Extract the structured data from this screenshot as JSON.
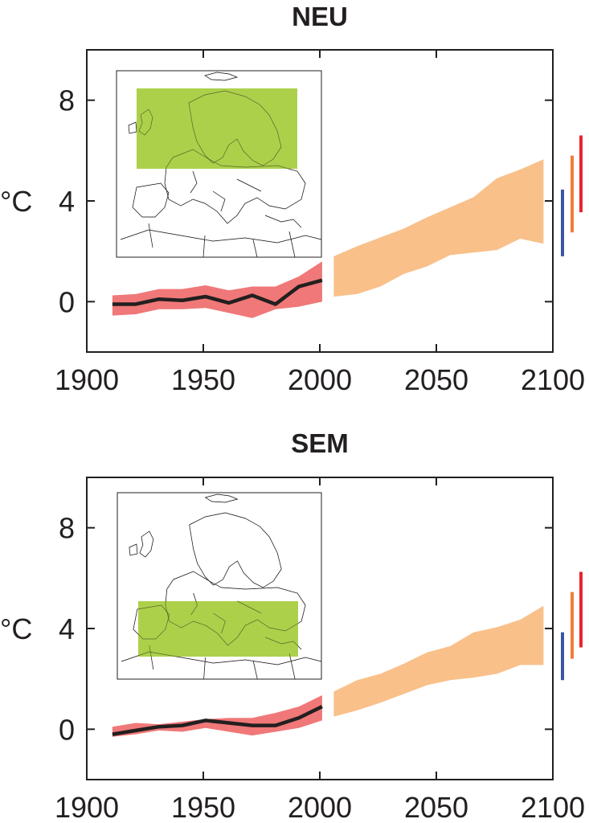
{
  "colors": {
    "observed_band": "#f07878",
    "observed_line": "#231f20",
    "projection_band": "#f9c08a",
    "region_box": "#a6cc3c",
    "bar_low": "#3b55a6",
    "bar_mid": "#f07d3a",
    "bar_high": "#e8262d"
  },
  "chart_data": [
    {
      "type": "line",
      "title": "NEU",
      "ylabel": "°C",
      "xlim": [
        1900,
        2100
      ],
      "ylim": [
        -2,
        10
      ],
      "xticks": [
        "1900",
        "1950",
        "2000",
        "2050",
        "2100"
      ],
      "yticks": [
        "0",
        "4",
        "8"
      ],
      "map_region": "Northern Europe",
      "series": [
        {
          "role": "observed_line",
          "x": [
            1911,
            1921,
            1931,
            1941,
            1951,
            1961,
            1971,
            1981,
            1991,
            2001
          ],
          "y": [
            -0.1,
            -0.1,
            0.1,
            0.05,
            0.2,
            -0.05,
            0.25,
            -0.1,
            0.6,
            0.85
          ]
        },
        {
          "role": "observed_band",
          "x": [
            1911,
            1921,
            1931,
            1941,
            1951,
            1961,
            1971,
            1981,
            1991,
            2001
          ],
          "low": [
            -0.55,
            -0.5,
            -0.3,
            -0.3,
            -0.25,
            -0.45,
            -0.65,
            -0.3,
            -0.2,
            0.0
          ],
          "high": [
            0.25,
            0.3,
            0.5,
            0.5,
            0.65,
            0.45,
            0.6,
            0.6,
            1.0,
            1.6
          ]
        },
        {
          "role": "projection_band",
          "x": [
            2006,
            2016,
            2026,
            2036,
            2046,
            2056,
            2066,
            2076,
            2086,
            2096
          ],
          "low": [
            0.2,
            0.3,
            0.6,
            1.1,
            1.4,
            1.85,
            1.95,
            2.05,
            2.5,
            2.3
          ],
          "high": [
            1.8,
            2.2,
            2.55,
            2.9,
            3.35,
            3.75,
            4.15,
            4.9,
            5.25,
            5.65
          ]
        }
      ],
      "range_bars": [
        {
          "color_key": "bar_low",
          "low": 1.8,
          "high": 4.45
        },
        {
          "color_key": "bar_mid",
          "low": 2.75,
          "high": 5.8
        },
        {
          "color_key": "bar_high",
          "low": 3.55,
          "high": 6.6
        }
      ]
    },
    {
      "type": "line",
      "title": "SEM",
      "ylabel": "°C",
      "xlim": [
        1900,
        2100
      ],
      "ylim": [
        -2,
        10
      ],
      "xticks": [
        "1900",
        "1950",
        "2000",
        "2050",
        "2100"
      ],
      "yticks": [
        "0",
        "4",
        "8"
      ],
      "map_region": "Southern Europe and Mediterranean",
      "series": [
        {
          "role": "observed_line",
          "x": [
            1911,
            1921,
            1931,
            1941,
            1951,
            1961,
            1971,
            1981,
            1991,
            2001
          ],
          "y": [
            -0.2,
            -0.05,
            0.1,
            0.15,
            0.35,
            0.25,
            0.15,
            0.15,
            0.45,
            0.9
          ]
        },
        {
          "role": "observed_band",
          "x": [
            1911,
            1921,
            1931,
            1941,
            1951,
            1961,
            1971,
            1981,
            1991,
            2001
          ],
          "low": [
            -0.3,
            -0.2,
            -0.05,
            -0.1,
            0.05,
            -0.1,
            -0.25,
            -0.1,
            0.05,
            0.35
          ],
          "high": [
            0.1,
            0.25,
            0.2,
            0.3,
            0.4,
            0.45,
            0.45,
            0.65,
            0.9,
            1.35
          ]
        },
        {
          "role": "projection_band",
          "x": [
            2006,
            2016,
            2026,
            2036,
            2046,
            2056,
            2066,
            2076,
            2086,
            2096
          ],
          "low": [
            0.5,
            0.75,
            1.05,
            1.4,
            1.75,
            1.95,
            2.05,
            2.2,
            2.55,
            2.55
          ],
          "high": [
            1.5,
            1.95,
            2.2,
            2.6,
            3.05,
            3.3,
            3.85,
            4.05,
            4.35,
            4.9
          ]
        }
      ],
      "range_bars": [
        {
          "color_key": "bar_low",
          "low": 1.95,
          "high": 3.85
        },
        {
          "color_key": "bar_mid",
          "low": 2.8,
          "high": 5.45
        },
        {
          "color_key": "bar_high",
          "low": 3.25,
          "high": 6.25
        }
      ]
    }
  ]
}
